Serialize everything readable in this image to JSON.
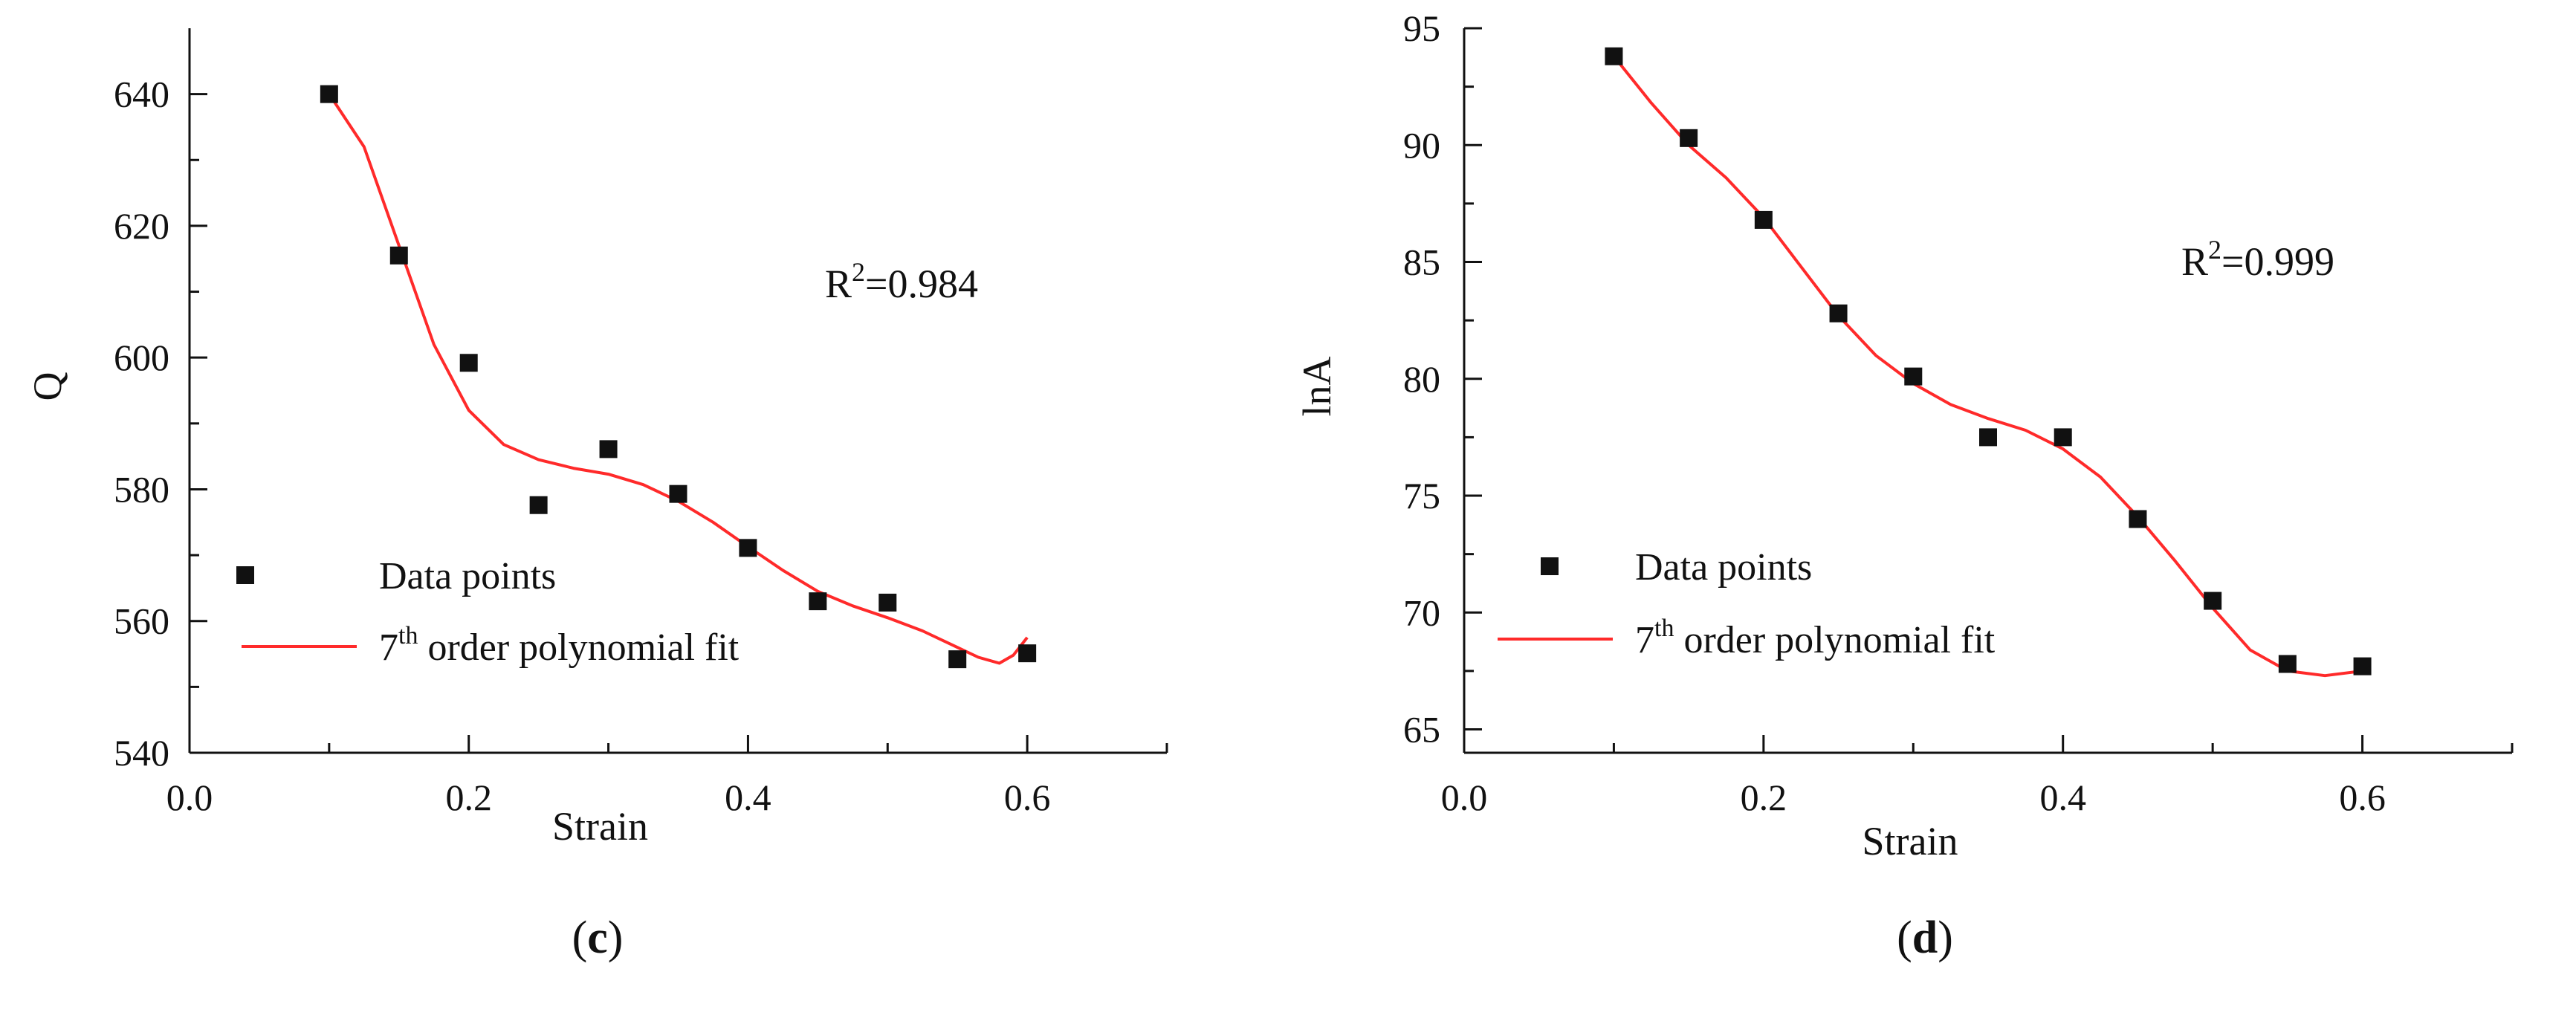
{
  "chart_data": [
    {
      "type": "scatter",
      "panel": "c",
      "xlabel": "Strain",
      "ylabel": "Q",
      "xlim": [
        0.0,
        0.7
      ],
      "ylim": [
        540,
        650
      ],
      "xticks": [
        "0.0",
        "0.2",
        "0.4",
        "0.6"
      ],
      "yticks": [
        "540",
        "560",
        "580",
        "600",
        "620",
        "640"
      ],
      "annotation": {
        "base": "R",
        "sup": "2",
        "rest": "=0.984"
      },
      "legend": {
        "points_label": "Data points",
        "fit_label_base": "7",
        "fit_label_sup": "th",
        "fit_label_rest": " order polynomial fit",
        "position": "bottom-left"
      },
      "series": [
        {
          "name": "Data points",
          "kind": "scatter",
          "x": [
            0.1,
            0.15,
            0.2,
            0.25,
            0.3,
            0.35,
            0.4,
            0.45,
            0.5,
            0.55,
            0.6
          ],
          "y": [
            640.0,
            615.5,
            599.2,
            577.6,
            586.1,
            579.3,
            571.1,
            563.0,
            562.8,
            554.2,
            555.1
          ]
        },
        {
          "name": "7th order polynomial fit",
          "kind": "line",
          "color": "#ff2a2a",
          "x": [
            0.1,
            0.125,
            0.15,
            0.175,
            0.2,
            0.225,
            0.25,
            0.275,
            0.3,
            0.325,
            0.35,
            0.375,
            0.4,
            0.425,
            0.45,
            0.475,
            0.5,
            0.525,
            0.55,
            0.565,
            0.58,
            0.59,
            0.6
          ],
          "y": [
            640.0,
            632.0,
            617.0,
            602.0,
            592.0,
            586.8,
            584.5,
            583.2,
            582.3,
            580.7,
            578.2,
            575.0,
            571.3,
            567.7,
            564.5,
            562.3,
            560.5,
            558.5,
            556.0,
            554.5,
            553.6,
            554.8,
            557.5
          ]
        }
      ]
    },
    {
      "type": "scatter",
      "panel": "d",
      "xlabel": "Strain",
      "ylabel": "lnA",
      "xlim": [
        0.0,
        0.7
      ],
      "ylim": [
        64,
        95
      ],
      "xticks": [
        "0.0",
        "0.2",
        "0.4",
        "0.6"
      ],
      "yticks": [
        "65",
        "70",
        "75",
        "80",
        "85",
        "90",
        "95"
      ],
      "annotation": {
        "base": "R",
        "sup": "2",
        "rest": "=0.999"
      },
      "legend": {
        "points_label": "Data points",
        "fit_label_base": "7",
        "fit_label_sup": "th",
        "fit_label_rest": " order polynomial fit",
        "position": "bottom-left"
      },
      "series": [
        {
          "name": "Data points",
          "kind": "scatter",
          "x": [
            0.1,
            0.15,
            0.2,
            0.25,
            0.3,
            0.35,
            0.4,
            0.45,
            0.5,
            0.55,
            0.6
          ],
          "y": [
            93.8,
            90.3,
            86.8,
            82.8,
            80.1,
            77.5,
            77.5,
            74.0,
            70.5,
            67.8,
            67.7
          ]
        },
        {
          "name": "7th order polynomial fit",
          "kind": "line",
          "color": "#ff2a2a",
          "x": [
            0.1,
            0.125,
            0.15,
            0.175,
            0.2,
            0.225,
            0.25,
            0.275,
            0.3,
            0.325,
            0.35,
            0.375,
            0.4,
            0.425,
            0.45,
            0.475,
            0.5,
            0.525,
            0.55,
            0.575,
            0.6
          ],
          "y": [
            93.8,
            91.8,
            90.0,
            88.6,
            86.9,
            84.8,
            82.7,
            81.0,
            79.8,
            78.9,
            78.3,
            77.8,
            77.0,
            75.8,
            74.1,
            72.2,
            70.2,
            68.4,
            67.5,
            67.3,
            67.5
          ]
        }
      ]
    }
  ],
  "captions": [
    "(c)",
    "(d)"
  ]
}
